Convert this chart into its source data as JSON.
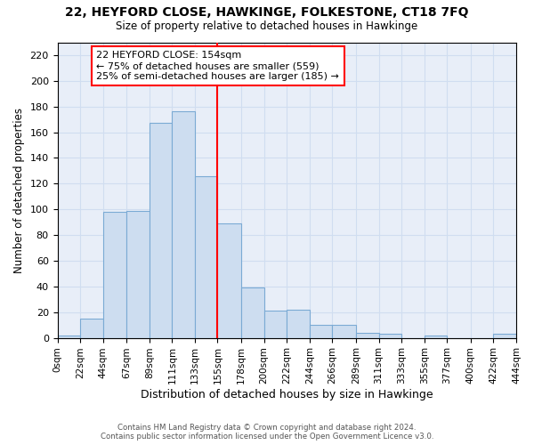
{
  "title1": "22, HEYFORD CLOSE, HAWKINGE, FOLKESTONE, CT18 7FQ",
  "title2": "Size of property relative to detached houses in Hawkinge",
  "xlabel": "Distribution of detached houses by size in Hawkinge",
  "ylabel": "Number of detached properties",
  "bar_color": "#cdddf0",
  "bar_edge_color": "#7baad4",
  "annotation_line1": "22 HEYFORD CLOSE: 154sqm",
  "annotation_line2": "← 75% of detached houses are smaller (559)",
  "annotation_line3": "25% of semi-detached houses are larger (185) →",
  "vline_x": 155,
  "vline_color": "red",
  "footer1": "Contains HM Land Registry data © Crown copyright and database right 2024.",
  "footer2": "Contains public sector information licensed under the Open Government Licence v3.0.",
  "bin_edges": [
    0,
    22,
    44,
    67,
    89,
    111,
    133,
    155,
    178,
    200,
    222,
    244,
    266,
    289,
    311,
    333,
    355,
    377,
    400,
    422,
    444
  ],
  "bin_counts": [
    2,
    15,
    98,
    99,
    167,
    176,
    126,
    89,
    39,
    21,
    22,
    10,
    10,
    4,
    3,
    0,
    2,
    0,
    0,
    3
  ],
  "xlim": [
    0,
    444
  ],
  "ylim": [
    0,
    230
  ],
  "yticks": [
    0,
    20,
    40,
    60,
    80,
    100,
    120,
    140,
    160,
    180,
    200,
    220
  ],
  "xtick_labels": [
    "0sqm",
    "22sqm",
    "44sqm",
    "67sqm",
    "89sqm",
    "111sqm",
    "133sqm",
    "155sqm",
    "178sqm",
    "200sqm",
    "222sqm",
    "244sqm",
    "266sqm",
    "289sqm",
    "311sqm",
    "333sqm",
    "355sqm",
    "377sqm",
    "400sqm",
    "422sqm",
    "444sqm"
  ],
  "grid_color": "#d0ddf0",
  "bg_color": "#e8eef8"
}
